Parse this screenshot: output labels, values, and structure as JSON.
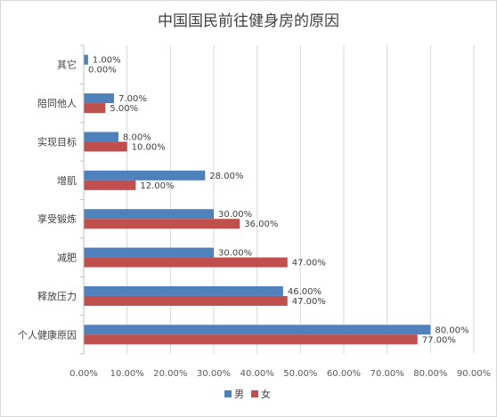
{
  "chart_data": {
    "type": "bar",
    "orientation": "horizontal",
    "title": "中国国民前往健身房的原因",
    "categories": [
      "其它",
      "陪同他人",
      "实现目标",
      "增肌",
      "享受锻炼",
      "减肥",
      "释放压力",
      "个人健康原因"
    ],
    "series": [
      {
        "name": "男",
        "color": "#4f81bd",
        "values": [
          1.0,
          7.0,
          8.0,
          28.0,
          30.0,
          30.0,
          46.0,
          80.0
        ],
        "labels": [
          "1.00%",
          "7.00%",
          "8.00%",
          "28.00%",
          "30.00%",
          "30.00%",
          "46.00%",
          "80.00%"
        ]
      },
      {
        "name": "女",
        "color": "#c0504d",
        "values": [
          0.0,
          5.0,
          10.0,
          12.0,
          36.0,
          47.0,
          47.0,
          77.0
        ],
        "labels": [
          "0.00%",
          "5.00%",
          "10.00%",
          "12.00%",
          "36.00%",
          "47.00%",
          "47.00%",
          "77.00%"
        ]
      }
    ],
    "x_ticks": [
      "0.00%",
      "10.00%",
      "20.00%",
      "30.00%",
      "40.00%",
      "50.00%",
      "60.00%",
      "70.00%",
      "80.00%",
      "90.00%"
    ],
    "xlim": [
      0,
      90
    ],
    "grid": true,
    "legend_position": "bottom"
  }
}
